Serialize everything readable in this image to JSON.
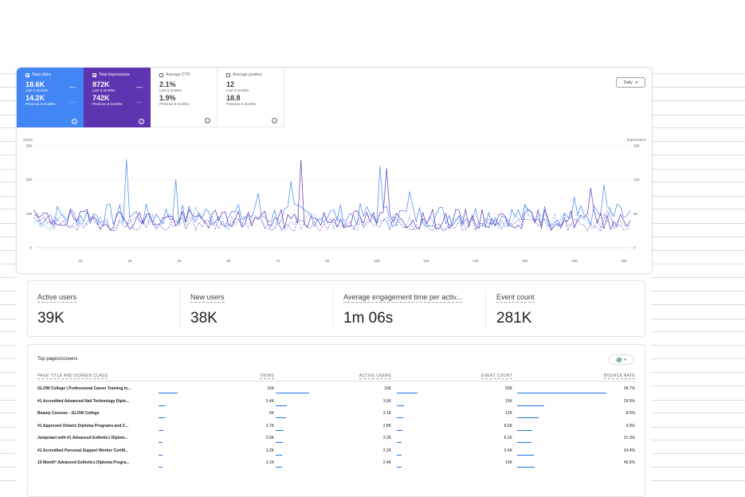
{
  "search_console": {
    "cards": [
      {
        "label": "Total clicks",
        "value": "18.6K",
        "period": "Last 6 months",
        "prev_value": "14.2K",
        "prev_period": "Previous 6 months",
        "checked": true
      },
      {
        "label": "Total impressions",
        "value": "872K",
        "period": "Last 6 months",
        "prev_value": "742K",
        "prev_period": "Previous 6 months",
        "checked": true
      },
      {
        "label": "Average CTR",
        "value": "2.1%",
        "period": "Last 6 months",
        "prev_value": "1.9%",
        "prev_period": "Previous 6 months",
        "checked": false
      },
      {
        "label": "Average position",
        "value": "12",
        "period": "Last 6 months",
        "prev_value": "18.8",
        "prev_period": "Previous 6 months",
        "checked": false
      }
    ],
    "help_icon": "?",
    "daily_label": "Daily",
    "colors": {
      "clicks": "#4285f4",
      "impressions": "#5e35b1"
    }
  },
  "chart_data": {
    "type": "line",
    "left_axis_label": "Clicks",
    "right_axis_label": "Impressions",
    "left_ticks": [
      "0",
      "100",
      "200",
      "300"
    ],
    "right_ticks": [
      "0",
      "6K",
      "12K",
      "18K"
    ],
    "x_ticks": [
      "15",
      "30",
      "45",
      "60",
      "75",
      "90",
      "105",
      "120",
      "135",
      "150",
      "165",
      "180"
    ],
    "ylim_left": [
      0,
      300
    ],
    "ylim_right": [
      0,
      18000
    ],
    "x_range": [
      1,
      182
    ],
    "series": [
      {
        "name": "Total clicks",
        "axis": "left",
        "dashed": false,
        "color": "#4285f4",
        "peaks": [
          [
            29,
            260
          ],
          [
            44,
            200
          ],
          [
            69,
            160
          ],
          [
            79,
            195
          ],
          [
            106,
            240
          ],
          [
            115,
            165
          ],
          [
            165,
            150
          ],
          [
            174,
            185
          ]
        ]
      },
      {
        "name": "Total impressions",
        "axis": "right",
        "dashed": false,
        "color": "#5e35b1",
        "peaks": [
          [
            82,
            15500
          ],
          [
            108,
            14000
          ],
          [
            170,
            10500
          ]
        ]
      },
      {
        "name": "Total clicks (previous 6 months)",
        "axis": "left",
        "dashed": true,
        "color": "#4285f4",
        "peaks": [
          [
            50,
            120
          ],
          [
            150,
            130
          ],
          [
            176,
            120
          ]
        ]
      },
      {
        "name": "Total impressions (previous 6 months)",
        "axis": "right",
        "dashed": true,
        "color": "#5e35b1",
        "peaks": [
          [
            175,
            6500
          ]
        ]
      }
    ]
  },
  "user_metrics": [
    {
      "label": "Active users",
      "value": "39K"
    },
    {
      "label": "New users",
      "value": "38K"
    },
    {
      "label": "Average engagement time per activ...",
      "value": "1m 06s"
    },
    {
      "label": "Event count",
      "value": "281K"
    }
  ],
  "top_pages": {
    "title": "Top pages/screens",
    "columns": [
      "PAGE TITLE AND SCREEN CLASS",
      "VIEWS",
      "ACTIVE USERS",
      "EVENT COUNT",
      "BOUNCE RATE"
    ],
    "rows": [
      {
        "title": "GLOW College | Professional Career Training in...",
        "views": "16K",
        "views_n": 16000,
        "users": "10K",
        "users_n": 10000,
        "events": "50K",
        "events_n": 50000,
        "bounce": "34.7%"
      },
      {
        "title": "#1 Accredited Advanced Nail Technology Diplo...",
        "views": "5.4K",
        "views_n": 5400,
        "users": "3.5K",
        "users_n": 3500,
        "events": "15K",
        "events_n": 15000,
        "bounce": "29.5%"
      },
      {
        "title": "Beauty Courses - GLOW College",
        "views": "5K",
        "views_n": 5000,
        "users": "3.1K",
        "users_n": 3100,
        "events": "12K",
        "events_n": 12000,
        "bounce": "8.5%"
      },
      {
        "title": "#1 Approved Ontario Diploma Programs and C...",
        "views": "3.7K",
        "views_n": 3700,
        "users": "2.8K",
        "users_n": 2800,
        "events": "8.5K",
        "events_n": 8500,
        "bounce": "9.0%"
      },
      {
        "title": "Jumpstart with #1 Advanced Esthetics Diplom...",
        "views": "3.5K",
        "views_n": 3500,
        "users": "2.2K",
        "users_n": 2200,
        "events": "8.1K",
        "events_n": 8100,
        "bounce": "21.3%"
      },
      {
        "title": "#1 Accredited Personal Support Worker Certifi...",
        "views": "3.2K",
        "views_n": 3200,
        "users": "2.2K",
        "users_n": 2200,
        "events": "9.4K",
        "events_n": 9400,
        "bounce": "34.4%"
      },
      {
        "title": "10 Month* Advanced Esthetics Diploma Progra...",
        "views": "3.1K",
        "views_n": 3100,
        "users": "2.4K",
        "users_n": 2400,
        "events": "10K",
        "events_n": 10000,
        "bounce": "45.6%"
      }
    ]
  }
}
